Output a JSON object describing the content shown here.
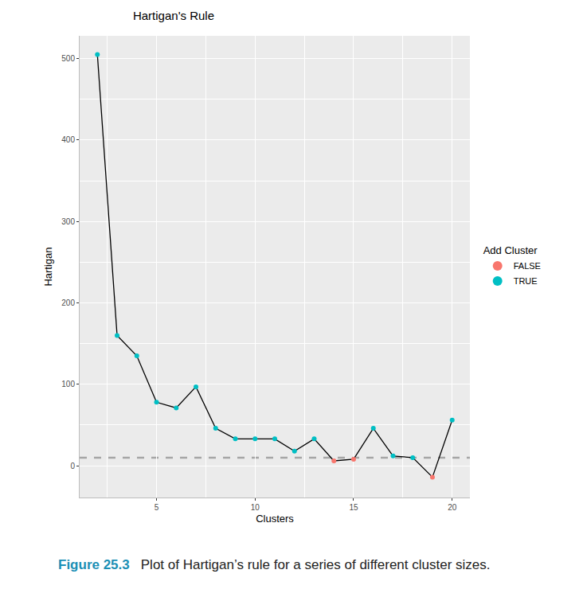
{
  "chart_data": {
    "type": "line",
    "title": "Hartigan's Rule",
    "x_label": "Clusters",
    "y_label": "Hartigan",
    "x": [
      2,
      3,
      4,
      5,
      6,
      7,
      8,
      9,
      10,
      11,
      12,
      13,
      14,
      15,
      16,
      17,
      18,
      19,
      20
    ],
    "values": [
      505,
      160,
      135,
      78,
      71,
      97,
      46,
      33,
      33,
      33,
      18,
      33,
      6,
      8,
      46,
      12,
      10,
      -14,
      56
    ],
    "groups": [
      "TRUE",
      "TRUE",
      "TRUE",
      "TRUE",
      "TRUE",
      "TRUE",
      "TRUE",
      "TRUE",
      "TRUE",
      "TRUE",
      "TRUE",
      "TRUE",
      "FALSE",
      "FALSE",
      "TRUE",
      "TRUE",
      "TRUE",
      "FALSE",
      "TRUE"
    ],
    "color": "#000000",
    "legend_title": "Add Cluster",
    "series": [
      {
        "name": "FALSE",
        "color": "#F8766D"
      },
      {
        "name": "TRUE",
        "color": "#00BFC4"
      }
    ],
    "threshold": 10,
    "xlim": [
      1.1,
      20.9
    ],
    "ylim": [
      -39,
      528
    ],
    "xticks": [
      5,
      10,
      15,
      20
    ],
    "yticks": [
      0,
      100,
      200,
      300,
      400,
      500
    ],
    "grid": true,
    "legend": "right",
    "caption": {
      "label": "Figure 25.3",
      "text": "Plot of Hartigan’s rule for a series of different cluster sizes."
    }
  }
}
